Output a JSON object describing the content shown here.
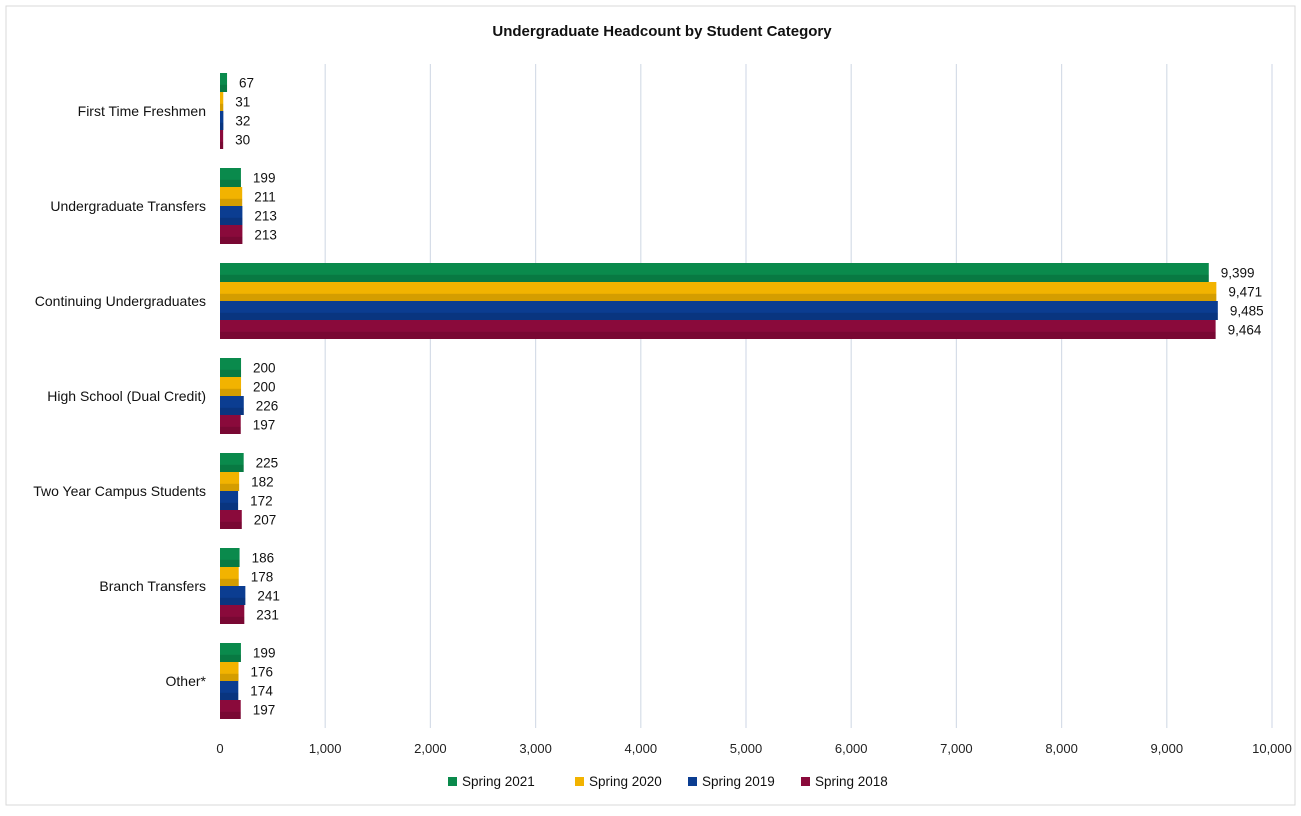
{
  "chart_data": {
    "type": "bar",
    "orientation": "horizontal",
    "title": "Undergraduate Headcount by Student Category",
    "categories": [
      "First Time Freshmen",
      "Undergraduate Transfers",
      "Continuing Undergraduates",
      "High School (Dual Credit)",
      "Two Year Campus Students",
      "Branch Transfers",
      "Other*"
    ],
    "series": [
      {
        "name": "Spring 2021",
        "color": "#0a8a4c",
        "values": [
          67,
          199,
          9399,
          200,
          225,
          186,
          199
        ],
        "labels": [
          "67",
          "199",
          "9,399",
          "200",
          "225",
          "186",
          "199"
        ]
      },
      {
        "name": "Spring 2020",
        "color": "#f2b300",
        "values": [
          31,
          211,
          9471,
          200,
          182,
          178,
          176
        ],
        "labels": [
          "31",
          "211",
          "9,471",
          "200",
          "182",
          "178",
          "176"
        ]
      },
      {
        "name": "Spring 2019",
        "color": "#0b3d91",
        "values": [
          32,
          213,
          9485,
          226,
          172,
          241,
          174
        ],
        "labels": [
          "32",
          "213",
          "9,485",
          "226",
          "172",
          "241",
          "174"
        ]
      },
      {
        "name": "Spring 2018",
        "color": "#8a0a3b",
        "values": [
          30,
          213,
          9464,
          197,
          207,
          231,
          197
        ],
        "labels": [
          "30",
          "213",
          "9,464",
          "197",
          "207",
          "231",
          "197"
        ]
      }
    ],
    "xlim": [
      0,
      10000
    ],
    "x_ticks": [
      0,
      1000,
      2000,
      3000,
      4000,
      5000,
      6000,
      7000,
      8000,
      9000,
      10000
    ],
    "x_tick_labels": [
      "0",
      "1,000",
      "2,000",
      "3,000",
      "4,000",
      "5,000",
      "6,000",
      "7,000",
      "8,000",
      "9,000",
      "10,000"
    ],
    "grid": "vertical",
    "legend_position": "bottom"
  }
}
